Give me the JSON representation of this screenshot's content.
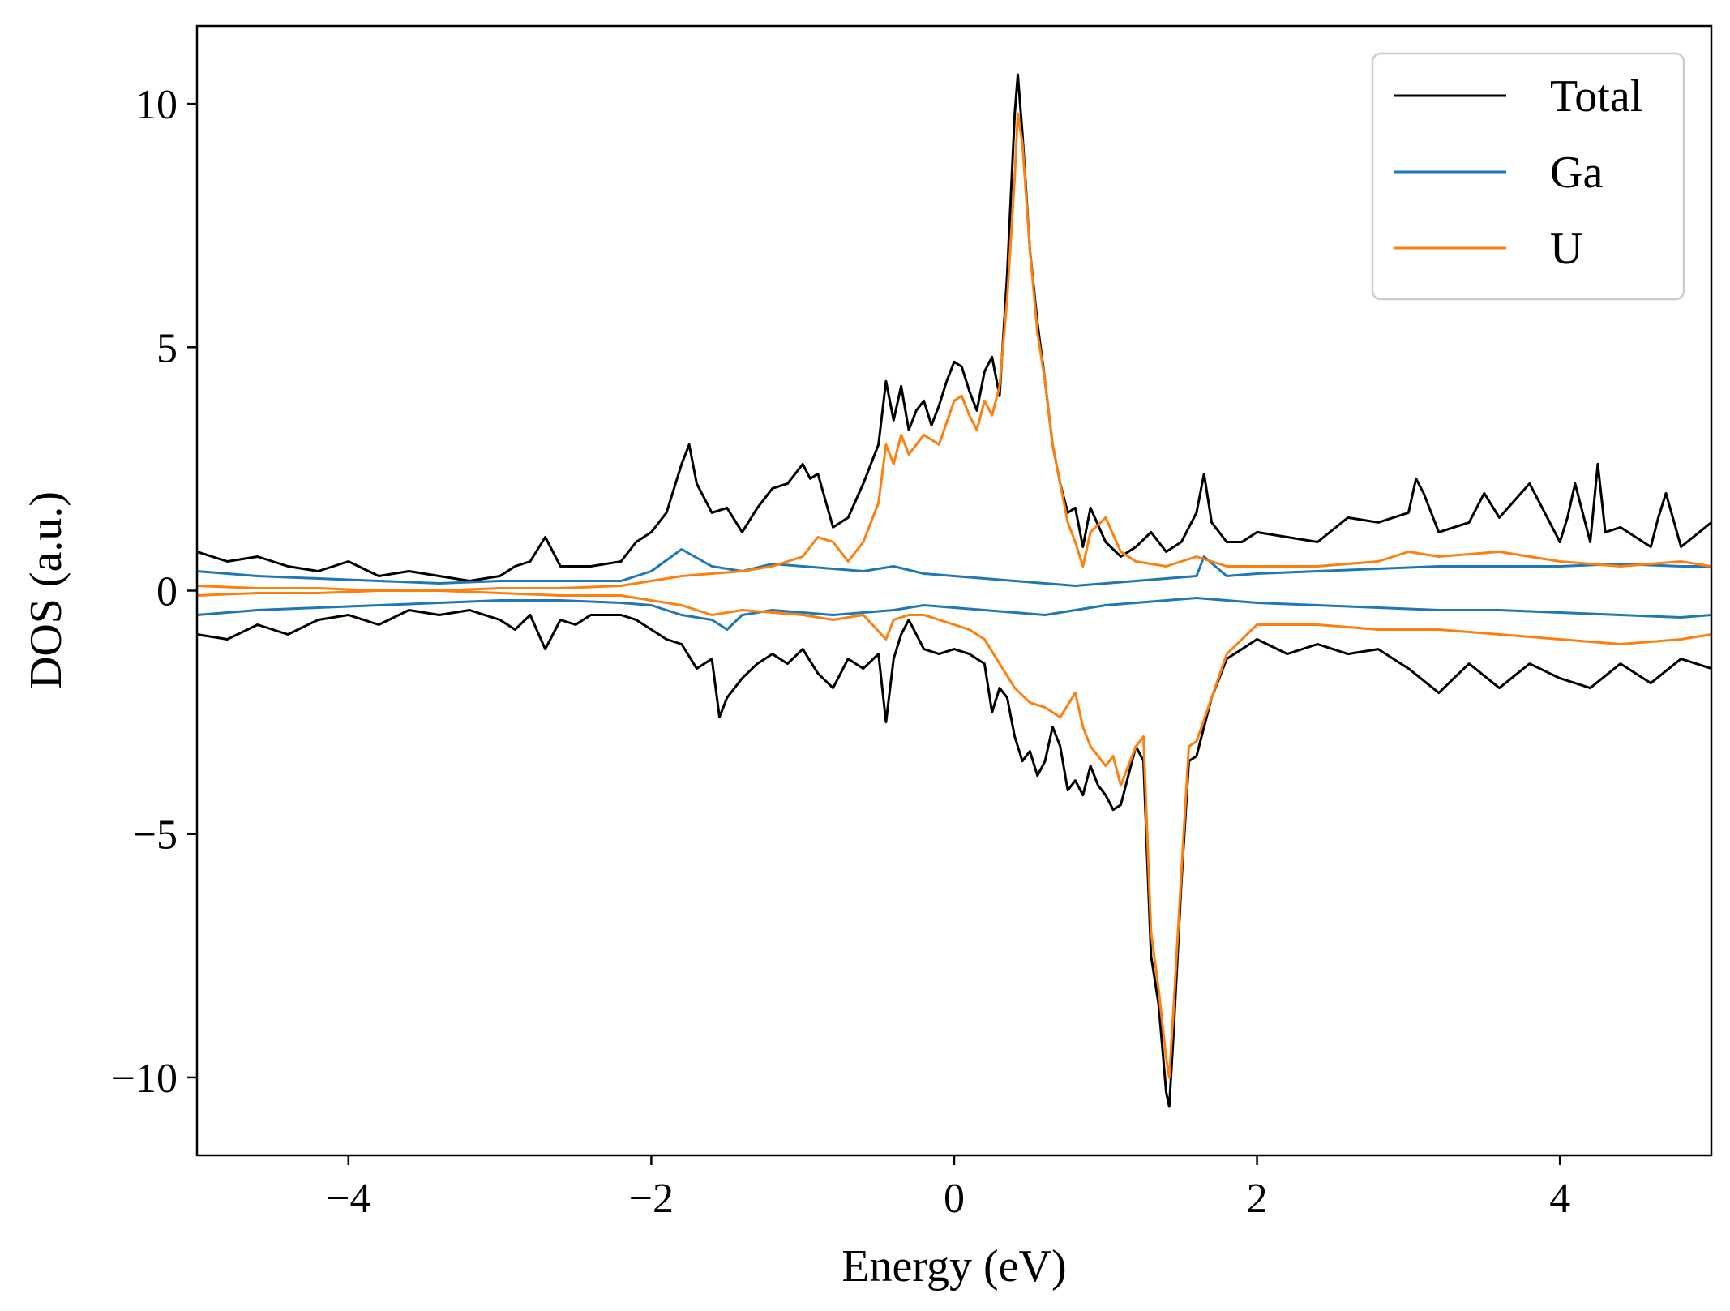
{
  "chart_data": {
    "type": "line",
    "title": "",
    "xlabel": "Energy (eV)",
    "ylabel": "DOS (a.u.)",
    "xlim": [
      -5,
      5
    ],
    "ylim": [
      -11.6,
      11.6
    ],
    "xticks": [
      -4,
      -2,
      0,
      2,
      4
    ],
    "xtick_labels": [
      "−4",
      "−2",
      "0",
      "2",
      "4"
    ],
    "yticks": [
      -10,
      -5,
      0,
      5,
      10
    ],
    "ytick_labels": [
      "−10",
      "−5",
      "0",
      "5",
      "10"
    ],
    "grid": false,
    "legend_position": "top-right",
    "series": [
      {
        "name": "Total",
        "color": "#000000",
        "up": {
          "x": [
            -5.0,
            -4.8,
            -4.6,
            -4.4,
            -4.2,
            -4.0,
            -3.8,
            -3.6,
            -3.4,
            -3.2,
            -3.0,
            -2.9,
            -2.8,
            -2.7,
            -2.6,
            -2.4,
            -2.2,
            -2.1,
            -2.0,
            -1.9,
            -1.8,
            -1.75,
            -1.7,
            -1.6,
            -1.5,
            -1.4,
            -1.3,
            -1.2,
            -1.1,
            -1.0,
            -0.95,
            -0.9,
            -0.8,
            -0.7,
            -0.6,
            -0.5,
            -0.45,
            -0.4,
            -0.35,
            -0.3,
            -0.25,
            -0.2,
            -0.15,
            -0.1,
            -0.05,
            0.0,
            0.05,
            0.1,
            0.15,
            0.2,
            0.25,
            0.3,
            0.35,
            0.4,
            0.42,
            0.45,
            0.5,
            0.55,
            0.6,
            0.65,
            0.7,
            0.75,
            0.8,
            0.85,
            0.9,
            1.0,
            1.1,
            1.2,
            1.3,
            1.4,
            1.5,
            1.6,
            1.65,
            1.7,
            1.8,
            1.9,
            2.0,
            2.2,
            2.4,
            2.6,
            2.8,
            3.0,
            3.05,
            3.1,
            3.2,
            3.4,
            3.5,
            3.6,
            3.8,
            4.0,
            4.05,
            4.1,
            4.2,
            4.25,
            4.3,
            4.4,
            4.6,
            4.65,
            4.7,
            4.8,
            5.0
          ],
          "y": [
            0.8,
            0.6,
            0.7,
            0.5,
            0.4,
            0.6,
            0.3,
            0.4,
            0.3,
            0.2,
            0.3,
            0.5,
            0.6,
            1.1,
            0.5,
            0.5,
            0.6,
            1.0,
            1.2,
            1.6,
            2.6,
            3.0,
            2.2,
            1.6,
            1.7,
            1.2,
            1.7,
            2.1,
            2.2,
            2.6,
            2.3,
            2.4,
            1.3,
            1.5,
            2.2,
            3.0,
            4.3,
            3.5,
            4.2,
            3.3,
            3.7,
            3.9,
            3.4,
            3.8,
            4.3,
            4.7,
            4.6,
            4.1,
            3.7,
            4.5,
            4.8,
            4.0,
            6.5,
            9.8,
            10.6,
            9.4,
            7.0,
            5.5,
            4.3,
            3.0,
            2.2,
            1.6,
            1.7,
            0.9,
            1.7,
            1.0,
            0.7,
            0.9,
            1.2,
            0.8,
            1.0,
            1.6,
            2.4,
            1.4,
            1.0,
            1.0,
            1.2,
            1.1,
            1.0,
            1.5,
            1.4,
            1.6,
            2.3,
            2.0,
            1.2,
            1.4,
            2.0,
            1.5,
            2.2,
            1.0,
            1.5,
            2.2,
            1.0,
            2.6,
            1.2,
            1.3,
            0.9,
            1.5,
            2.0,
            0.9,
            1.4
          ]
        },
        "down": {
          "x": [
            -5.0,
            -4.8,
            -4.6,
            -4.4,
            -4.2,
            -4.0,
            -3.8,
            -3.6,
            -3.4,
            -3.2,
            -3.0,
            -2.9,
            -2.8,
            -2.7,
            -2.6,
            -2.5,
            -2.4,
            -2.2,
            -2.1,
            -2.0,
            -1.9,
            -1.8,
            -1.7,
            -1.6,
            -1.55,
            -1.5,
            -1.4,
            -1.3,
            -1.2,
            -1.1,
            -1.0,
            -0.9,
            -0.8,
            -0.7,
            -0.6,
            -0.5,
            -0.45,
            -0.4,
            -0.35,
            -0.3,
            -0.2,
            -0.1,
            0.0,
            0.1,
            0.2,
            0.25,
            0.3,
            0.35,
            0.4,
            0.45,
            0.5,
            0.55,
            0.6,
            0.65,
            0.7,
            0.75,
            0.8,
            0.85,
            0.9,
            0.95,
            1.0,
            1.05,
            1.1,
            1.15,
            1.2,
            1.25,
            1.3,
            1.35,
            1.4,
            1.42,
            1.45,
            1.5,
            1.55,
            1.6,
            1.65,
            1.7,
            1.8,
            1.9,
            2.0,
            2.2,
            2.4,
            2.6,
            2.8,
            3.0,
            3.2,
            3.3,
            3.4,
            3.6,
            3.8,
            4.0,
            4.2,
            4.4,
            4.6,
            4.8,
            5.0
          ],
          "y": [
            -0.9,
            -1.0,
            -0.7,
            -0.9,
            -0.6,
            -0.5,
            -0.7,
            -0.4,
            -0.5,
            -0.4,
            -0.6,
            -0.8,
            -0.5,
            -1.2,
            -0.6,
            -0.7,
            -0.5,
            -0.5,
            -0.6,
            -0.8,
            -1.0,
            -1.1,
            -1.6,
            -1.4,
            -2.6,
            -2.2,
            -1.8,
            -1.5,
            -1.3,
            -1.5,
            -1.2,
            -1.7,
            -2.0,
            -1.4,
            -1.6,
            -1.3,
            -2.7,
            -1.4,
            -0.9,
            -0.6,
            -1.2,
            -1.3,
            -1.2,
            -1.3,
            -1.5,
            -2.5,
            -2.0,
            -2.2,
            -3.0,
            -3.5,
            -3.3,
            -3.8,
            -3.5,
            -2.8,
            -3.2,
            -4.1,
            -3.9,
            -4.2,
            -3.6,
            -4.0,
            -4.2,
            -4.5,
            -4.4,
            -3.8,
            -3.2,
            -3.5,
            -7.5,
            -8.5,
            -10.3,
            -10.6,
            -9.0,
            -6.0,
            -3.5,
            -3.4,
            -2.8,
            -2.2,
            -1.4,
            -1.2,
            -1.0,
            -1.3,
            -1.1,
            -1.3,
            -1.2,
            -1.6,
            -2.1,
            -1.8,
            -1.5,
            -2.0,
            -1.5,
            -1.8,
            -2.0,
            -1.5,
            -1.9,
            -1.4,
            -1.6
          ]
        }
      },
      {
        "name": "Ga",
        "color": "#1f77b4",
        "up": {
          "x": [
            -5.0,
            -4.6,
            -4.2,
            -3.8,
            -3.4,
            -3.0,
            -2.6,
            -2.2,
            -2.0,
            -1.8,
            -1.6,
            -1.4,
            -1.2,
            -1.0,
            -0.8,
            -0.6,
            -0.4,
            -0.2,
            0.0,
            0.2,
            0.4,
            0.6,
            0.8,
            1.0,
            1.2,
            1.4,
            1.6,
            1.65,
            1.8,
            2.0,
            2.4,
            2.8,
            3.2,
            3.6,
            4.0,
            4.4,
            4.8,
            5.0
          ],
          "y": [
            0.4,
            0.3,
            0.25,
            0.2,
            0.15,
            0.2,
            0.2,
            0.2,
            0.4,
            0.85,
            0.5,
            0.4,
            0.55,
            0.5,
            0.45,
            0.4,
            0.5,
            0.35,
            0.3,
            0.25,
            0.2,
            0.15,
            0.1,
            0.15,
            0.2,
            0.25,
            0.3,
            0.7,
            0.3,
            0.35,
            0.4,
            0.45,
            0.5,
            0.5,
            0.5,
            0.55,
            0.5,
            0.5
          ]
        },
        "down": {
          "x": [
            -5.0,
            -4.6,
            -4.2,
            -3.8,
            -3.4,
            -3.0,
            -2.6,
            -2.2,
            -2.0,
            -1.8,
            -1.6,
            -1.5,
            -1.4,
            -1.2,
            -1.0,
            -0.8,
            -0.6,
            -0.4,
            -0.2,
            0.0,
            0.2,
            0.4,
            0.6,
            0.8,
            1.0,
            1.2,
            1.4,
            1.6,
            1.8,
            2.0,
            2.4,
            2.8,
            3.2,
            3.6,
            4.0,
            4.4,
            4.8,
            5.0
          ],
          "y": [
            -0.5,
            -0.4,
            -0.35,
            -0.3,
            -0.25,
            -0.2,
            -0.2,
            -0.25,
            -0.3,
            -0.5,
            -0.6,
            -0.8,
            -0.5,
            -0.4,
            -0.45,
            -0.5,
            -0.45,
            -0.4,
            -0.3,
            -0.35,
            -0.4,
            -0.45,
            -0.5,
            -0.4,
            -0.3,
            -0.25,
            -0.2,
            -0.15,
            -0.2,
            -0.25,
            -0.3,
            -0.35,
            -0.4,
            -0.4,
            -0.45,
            -0.5,
            -0.55,
            -0.5
          ]
        }
      },
      {
        "name": "U",
        "color": "#ff7f0e",
        "up": {
          "x": [
            -5.0,
            -4.6,
            -4.2,
            -3.8,
            -3.4,
            -3.0,
            -2.6,
            -2.2,
            -2.0,
            -1.8,
            -1.6,
            -1.4,
            -1.2,
            -1.0,
            -0.9,
            -0.8,
            -0.7,
            -0.6,
            -0.5,
            -0.45,
            -0.4,
            -0.35,
            -0.3,
            -0.2,
            -0.1,
            0.0,
            0.05,
            0.1,
            0.15,
            0.2,
            0.25,
            0.3,
            0.35,
            0.4,
            0.42,
            0.45,
            0.5,
            0.55,
            0.6,
            0.65,
            0.7,
            0.75,
            0.8,
            0.85,
            0.9,
            1.0,
            1.1,
            1.2,
            1.4,
            1.6,
            1.8,
            2.0,
            2.4,
            2.8,
            3.0,
            3.2,
            3.6,
            4.0,
            4.4,
            4.8,
            5.0
          ],
          "y": [
            0.1,
            0.05,
            0.05,
            0.0,
            0.0,
            0.05,
            0.05,
            0.1,
            0.2,
            0.3,
            0.35,
            0.4,
            0.5,
            0.7,
            1.1,
            1.0,
            0.6,
            1.0,
            1.8,
            3.0,
            2.6,
            3.2,
            2.8,
            3.2,
            3.0,
            3.9,
            4.0,
            3.6,
            3.3,
            3.9,
            3.6,
            4.2,
            6.0,
            8.5,
            9.8,
            9.2,
            7.0,
            5.3,
            4.3,
            3.0,
            2.2,
            1.4,
            1.0,
            0.5,
            1.2,
            1.5,
            0.8,
            0.6,
            0.5,
            0.7,
            0.5,
            0.5,
            0.5,
            0.6,
            0.8,
            0.7,
            0.8,
            0.6,
            0.5,
            0.6,
            0.5
          ]
        },
        "down": {
          "x": [
            -5.0,
            -4.6,
            -4.2,
            -3.8,
            -3.4,
            -3.0,
            -2.6,
            -2.2,
            -2.0,
            -1.8,
            -1.6,
            -1.4,
            -1.2,
            -1.0,
            -0.8,
            -0.6,
            -0.45,
            -0.4,
            -0.3,
            -0.2,
            -0.1,
            0.0,
            0.1,
            0.2,
            0.3,
            0.4,
            0.5,
            0.6,
            0.7,
            0.8,
            0.85,
            0.9,
            1.0,
            1.05,
            1.1,
            1.15,
            1.2,
            1.25,
            1.3,
            1.35,
            1.4,
            1.42,
            1.45,
            1.5,
            1.55,
            1.6,
            1.7,
            1.8,
            2.0,
            2.4,
            2.8,
            3.2,
            3.6,
            4.0,
            4.4,
            4.8,
            5.0
          ],
          "y": [
            -0.1,
            -0.05,
            -0.05,
            0.0,
            0.0,
            -0.05,
            -0.1,
            -0.1,
            -0.2,
            -0.3,
            -0.5,
            -0.4,
            -0.45,
            -0.5,
            -0.6,
            -0.5,
            -1.0,
            -0.6,
            -0.5,
            -0.5,
            -0.6,
            -0.7,
            -0.8,
            -1.0,
            -1.5,
            -2.0,
            -2.3,
            -2.4,
            -2.6,
            -2.1,
            -2.8,
            -3.2,
            -3.6,
            -3.4,
            -4.0,
            -3.6,
            -3.2,
            -3.0,
            -7.0,
            -8.2,
            -9.6,
            -10.0,
            -8.5,
            -5.8,
            -3.2,
            -3.1,
            -2.2,
            -1.3,
            -0.7,
            -0.7,
            -0.8,
            -0.8,
            -0.9,
            -1.0,
            -1.1,
            -1.0,
            -0.9
          ]
        }
      }
    ]
  }
}
